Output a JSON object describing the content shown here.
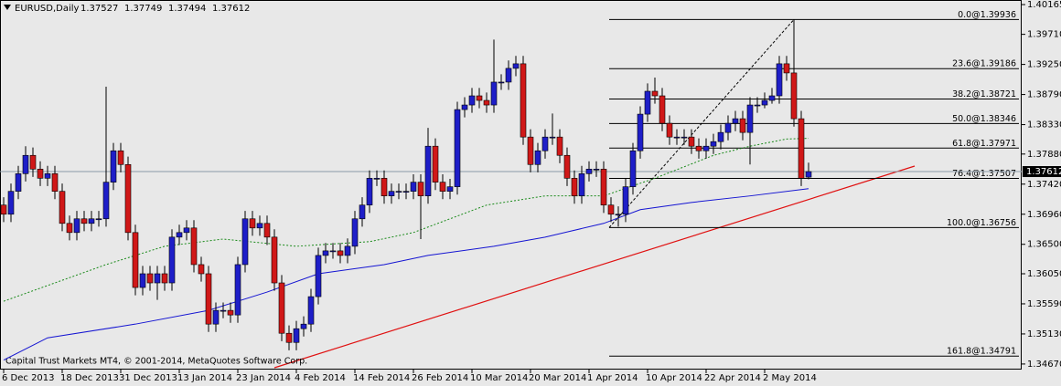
{
  "chart_data": {
    "type": "candlestick",
    "symbol_label": "EURUSD,Daily",
    "copyright": "Capital Trust Markets MT4, © 2001-2014, MetaQuotes Software Corp.",
    "up_color": "#1e1ec8",
    "down_color": "#d01818",
    "ylim": [
      1.34585,
      1.40235
    ],
    "yticks": [
      1.40165,
      {
        "value": 1.3971,
        "label": "1.39710"
      },
      {
        "value": 1.3925,
        "label": "1.39250"
      },
      {
        "value": 1.3879,
        "label": "1.38790"
      },
      {
        "value": 1.3833,
        "label": "1.38330"
      },
      {
        "value": 1.3788,
        "label": "1.37880"
      },
      {
        "value": 1.3742,
        "label": "1.37420"
      },
      {
        "value": 1.3696,
        "label": "1.36960"
      },
      {
        "value": 1.365,
        "label": "1.36500"
      },
      {
        "value": 1.3605,
        "label": "1.36050"
      },
      {
        "value": 1.3559,
        "label": "1.35590"
      },
      {
        "value": 1.3513,
        "label": "1.35130"
      },
      {
        "value": 1.3467,
        "label": "1.34670"
      }
    ],
    "categories": [
      "6 Dec 2013",
      null,
      null,
      null,
      null,
      null,
      null,
      null,
      "18 Dec 2013",
      null,
      null,
      null,
      null,
      null,
      null,
      null,
      "31 Dec 2013",
      null,
      null,
      null,
      null,
      null,
      null,
      null,
      "13 Jan 2014",
      null,
      null,
      null,
      null,
      null,
      null,
      null,
      "23 Jan 2014",
      null,
      null,
      null,
      null,
      null,
      null,
      null,
      "4 Feb 2014",
      null,
      null,
      null,
      null,
      null,
      null,
      null,
      "14 Feb 2014",
      null,
      null,
      null,
      null,
      null,
      null,
      null,
      "26 Feb 2014",
      null,
      null,
      null,
      null,
      null,
      null,
      null,
      "10 Mar 2014",
      null,
      null,
      null,
      null,
      null,
      null,
      null,
      "20 Mar 2014",
      null,
      null,
      null,
      null,
      null,
      null,
      null,
      "1 Apr 2014",
      null,
      null,
      null,
      null,
      null,
      null,
      null,
      "10 Apr 2014",
      null,
      null,
      null,
      null,
      null,
      null,
      null,
      "22 Apr 2014",
      null,
      null,
      null,
      null,
      null,
      null,
      null,
      "2 May 2014",
      null,
      null,
      null,
      null,
      null,
      null
    ],
    "ohlc": [
      [
        1.371,
        1.3722,
        1.3684,
        1.3696
      ],
      [
        1.3696,
        1.3743,
        1.3684,
        1.3731
      ],
      [
        1.3731,
        1.377,
        1.3719,
        1.3758
      ],
      [
        1.3758,
        1.38,
        1.3746,
        1.3786
      ],
      [
        1.3786,
        1.3798,
        1.3753,
        1.3765
      ],
      [
        1.3765,
        1.3777,
        1.3739,
        1.3751
      ],
      [
        1.3751,
        1.377,
        1.3739,
        1.3758
      ],
      [
        1.3758,
        1.377,
        1.3719,
        1.3731
      ],
      [
        1.3731,
        1.3743,
        1.367,
        1.3682
      ],
      [
        1.3682,
        1.3694,
        1.3656,
        1.3668
      ],
      [
        1.3668,
        1.3701,
        1.3656,
        1.3689
      ],
      [
        1.3689,
        1.3701,
        1.367,
        1.3682
      ],
      [
        1.3682,
        1.3701,
        1.367,
        1.3689
      ],
      [
        1.3689,
        1.3701,
        1.3677,
        1.3689
      ],
      [
        1.3689,
        1.3891,
        1.3677,
        1.3745
      ],
      [
        1.3745,
        1.3805,
        1.3733,
        1.3793
      ],
      [
        1.3793,
        1.3805,
        1.376,
        1.3772
      ],
      [
        1.3772,
        1.3784,
        1.3656,
        1.3668
      ],
      [
        1.3668,
        1.368,
        1.3572,
        1.3584
      ],
      [
        1.3584,
        1.3617,
        1.3572,
        1.3605
      ],
      [
        1.3605,
        1.3617,
        1.3579,
        1.3591
      ],
      [
        1.3591,
        1.3617,
        1.3565,
        1.3605
      ],
      [
        1.3605,
        1.3617,
        1.3579,
        1.3591
      ],
      [
        1.3591,
        1.3673,
        1.3579,
        1.3661
      ],
      [
        1.3661,
        1.368,
        1.3649,
        1.3668
      ],
      [
        1.3668,
        1.3687,
        1.3656,
        1.3675
      ],
      [
        1.3675,
        1.3687,
        1.3607,
        1.3619
      ],
      [
        1.3619,
        1.3631,
        1.3593,
        1.3605
      ],
      [
        1.3605,
        1.3617,
        1.3516,
        1.3528
      ],
      [
        1.3528,
        1.3561,
        1.3516,
        1.3549
      ],
      [
        1.3549,
        1.3561,
        1.3537,
        1.3549
      ],
      [
        1.3549,
        1.3561,
        1.353,
        1.3542
      ],
      [
        1.3542,
        1.3631,
        1.353,
        1.3619
      ],
      [
        1.3619,
        1.3701,
        1.3607,
        1.3689
      ],
      [
        1.3689,
        1.3701,
        1.3663,
        1.3675
      ],
      [
        1.3675,
        1.3694,
        1.3663,
        1.3682
      ],
      [
        1.3682,
        1.3694,
        1.3649,
        1.3661
      ],
      [
        1.3661,
        1.3673,
        1.3579,
        1.3591
      ],
      [
        1.3591,
        1.3603,
        1.3502,
        1.3514
      ],
      [
        1.3514,
        1.3526,
        1.3488,
        1.35
      ],
      [
        1.35,
        1.3533,
        1.3488,
        1.3521
      ],
      [
        1.3521,
        1.354,
        1.3509,
        1.3528
      ],
      [
        1.3528,
        1.3582,
        1.3516,
        1.357
      ],
      [
        1.357,
        1.3645,
        1.3558,
        1.3633
      ],
      [
        1.3633,
        1.3652,
        1.3621,
        1.364
      ],
      [
        1.364,
        1.3652,
        1.3628,
        1.364
      ],
      [
        1.364,
        1.3652,
        1.3621,
        1.3633
      ],
      [
        1.3633,
        1.3659,
        1.3621,
        1.3647
      ],
      [
        1.3647,
        1.3701,
        1.3635,
        1.3689
      ],
      [
        1.3689,
        1.3722,
        1.3677,
        1.371
      ],
      [
        1.371,
        1.3763,
        1.3698,
        1.3751
      ],
      [
        1.3751,
        1.3763,
        1.3739,
        1.3751
      ],
      [
        1.3751,
        1.3763,
        1.3712,
        1.3724
      ],
      [
        1.3724,
        1.3743,
        1.3712,
        1.3731
      ],
      [
        1.3731,
        1.3743,
        1.3719,
        1.3731
      ],
      [
        1.3731,
        1.3743,
        1.3719,
        1.3731
      ],
      [
        1.3731,
        1.3757,
        1.3719,
        1.3745
      ],
      [
        1.3745,
        1.3757,
        1.3658,
        1.3724
      ],
      [
        1.3724,
        1.3828,
        1.3712,
        1.38
      ],
      [
        1.38,
        1.3812,
        1.3733,
        1.3745
      ],
      [
        1.3745,
        1.3757,
        1.3719,
        1.3731
      ],
      [
        1.3731,
        1.375,
        1.3719,
        1.3738
      ],
      [
        1.3738,
        1.3868,
        1.3726,
        1.3856
      ],
      [
        1.3856,
        1.3875,
        1.3844,
        1.3863
      ],
      [
        1.3863,
        1.3889,
        1.3851,
        1.3877
      ],
      [
        1.3877,
        1.3889,
        1.3858,
        1.387
      ],
      [
        1.387,
        1.3882,
        1.3851,
        1.3863
      ],
      [
        1.3863,
        1.3963,
        1.3851,
        1.3898
      ],
      [
        1.3898,
        1.391,
        1.3886,
        1.3898
      ],
      [
        1.3898,
        1.3931,
        1.3886,
        1.3919
      ],
      [
        1.3919,
        1.3938,
        1.3907,
        1.3926
      ],
      [
        1.3926,
        1.3938,
        1.3802,
        1.3814
      ],
      [
        1.3814,
        1.3826,
        1.376,
        1.3772
      ],
      [
        1.3772,
        1.3805,
        1.376,
        1.3793
      ],
      [
        1.3793,
        1.3826,
        1.3781,
        1.3814
      ],
      [
        1.3814,
        1.385,
        1.3802,
        1.3814
      ],
      [
        1.3814,
        1.3826,
        1.3774,
        1.3786
      ],
      [
        1.3786,
        1.3798,
        1.3739,
        1.3751
      ],
      [
        1.3751,
        1.3763,
        1.3712,
        1.3724
      ],
      [
        1.3724,
        1.377,
        1.3712,
        1.3758
      ],
      [
        1.3758,
        1.3777,
        1.3746,
        1.3765
      ],
      [
        1.3765,
        1.3777,
        1.3753,
        1.3765
      ],
      [
        1.3765,
        1.3777,
        1.3698,
        1.371
      ],
      [
        1.371,
        1.3722,
        1.3684,
        1.3696
      ],
      [
        1.3696,
        1.3708,
        1.3677,
        1.3696
      ],
      [
        1.3696,
        1.375,
        1.3684,
        1.3738
      ],
      [
        1.3738,
        1.3805,
        1.3726,
        1.3793
      ],
      [
        1.3793,
        1.3861,
        1.3781,
        1.3849
      ],
      [
        1.3849,
        1.3896,
        1.3837,
        1.3884
      ],
      [
        1.3884,
        1.3905,
        1.3865,
        1.3877
      ],
      [
        1.3877,
        1.3889,
        1.3823,
        1.3835
      ],
      [
        1.3835,
        1.3847,
        1.3802,
        1.3814
      ],
      [
        1.3814,
        1.3826,
        1.3802,
        1.3814
      ],
      [
        1.3814,
        1.3826,
        1.3802,
        1.3814
      ],
      [
        1.3814,
        1.3826,
        1.3788,
        1.38
      ],
      [
        1.38,
        1.3812,
        1.3781,
        1.3793
      ],
      [
        1.3793,
        1.3812,
        1.3781,
        1.38
      ],
      [
        1.38,
        1.3819,
        1.3788,
        1.3807
      ],
      [
        1.3807,
        1.3833,
        1.3795,
        1.3821
      ],
      [
        1.3821,
        1.3847,
        1.3809,
        1.3835
      ],
      [
        1.3835,
        1.3854,
        1.3823,
        1.3842
      ],
      [
        1.3842,
        1.3854,
        1.3809,
        1.3821
      ],
      [
        1.3821,
        1.3875,
        1.3772,
        1.3863
      ],
      [
        1.3863,
        1.3875,
        1.3851,
        1.3863
      ],
      [
        1.3863,
        1.3882,
        1.3858,
        1.387
      ],
      [
        1.387,
        1.3889,
        1.3865,
        1.3877
      ],
      [
        1.3877,
        1.3938,
        1.3865,
        1.3926
      ],
      [
        1.3926,
        1.3938,
        1.39,
        1.3912
      ],
      [
        1.3912,
        1.3994,
        1.383,
        1.3842
      ],
      [
        1.3842,
        1.3854,
        1.3739,
        1.3751
      ],
      [
        1.37527,
        1.37749,
        1.37494,
        1.37612
      ]
    ],
    "moving_averages": [
      {
        "color": "#1414d2",
        "style": "solid",
        "x": [
          0,
          6,
          18,
          28,
          36,
          43,
          52,
          58,
          67,
          74,
          82,
          87,
          94,
          102,
          110
        ],
        "values": [
          1.3473,
          1.3507,
          1.3528,
          1.3549,
          1.3577,
          1.3605,
          1.3619,
          1.3633,
          1.3647,
          1.3661,
          1.3682,
          1.3703,
          1.3714,
          1.3724,
          1.3735
        ]
      },
      {
        "color": "#1a8a1a",
        "style": "dashed",
        "x": [
          0,
          7,
          14,
          22,
          30,
          40,
          50,
          56,
          66,
          74,
          82,
          89,
          97,
          102,
          107,
          110
        ],
        "values": [
          1.3563,
          1.3591,
          1.3619,
          1.3647,
          1.3658,
          1.3647,
          1.3654,
          1.3668,
          1.371,
          1.3724,
          1.3724,
          1.3751,
          1.3786,
          1.38,
          1.3811,
          1.3812
        ]
      }
    ],
    "fib_levels": [
      {
        "value": 1.39936,
        "label": "0.0@1.39936"
      },
      {
        "value": 1.39186,
        "label": "23.6@1.39186"
      },
      {
        "value": 1.38721,
        "label": "38.2@1.38721"
      },
      {
        "value": 1.38346,
        "label": "50.0@1.38346"
      },
      {
        "value": 1.37971,
        "label": "61.8@1.37971"
      },
      {
        "value": 1.37507,
        "label": "76.4@1.37507"
      },
      {
        "value": 1.36756,
        "label": "100.0@1.36756"
      },
      {
        "value": 1.34791,
        "label": "161.8@1.34791"
      }
    ]
  }
}
